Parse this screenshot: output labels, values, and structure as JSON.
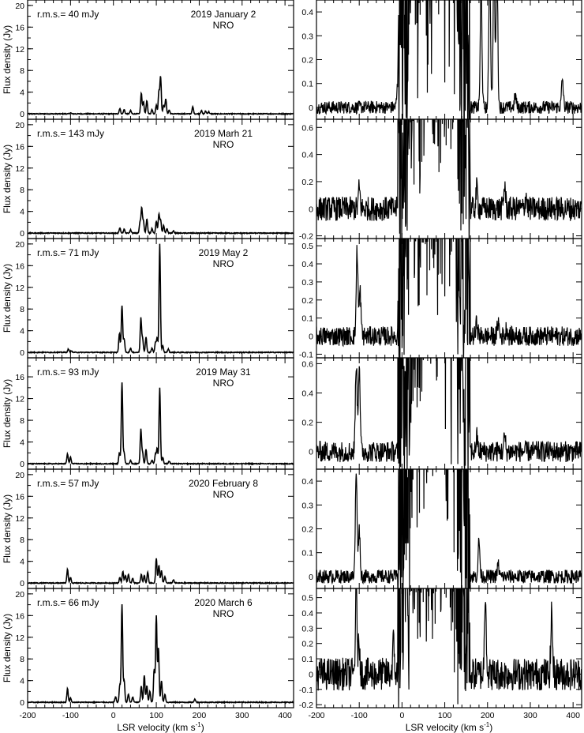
{
  "chart_data": {
    "type": "line",
    "xlabel": "LSR velocity (km s",
    "xlabel_sup": "-1",
    "xlabel_close": ")",
    "ylabel": "Flux density (Jy)",
    "xlim": [
      -200,
      420
    ],
    "x_ticks": [
      -200,
      -100,
      0,
      100,
      200,
      300,
      400
    ],
    "x_tick_labels": [
      "-200",
      "-100",
      "0",
      "100",
      "200",
      "300",
      "400"
    ],
    "rows": [
      {
        "rms_label": "r.m.s.= 40 mJy",
        "date": "2019 January 2",
        "station": "NRO",
        "left": {
          "ylim": [
            -1,
            21
          ],
          "yticks": [
            0,
            4,
            8,
            12,
            16,
            20
          ],
          "peaks": [
            [
              -100,
              0.2
            ],
            [
              15,
              1.0
            ],
            [
              25,
              0.8
            ],
            [
              40,
              0.6
            ],
            [
              65,
              3.8
            ],
            [
              70,
              2.2
            ],
            [
              78,
              2.4
            ],
            [
              90,
              0.8
            ],
            [
              100,
              1.6
            ],
            [
              106,
              4.0
            ],
            [
              110,
              6.8
            ],
            [
              117,
              1.6
            ],
            [
              122,
              2.8
            ],
            [
              130,
              0.7
            ],
            [
              185,
              1.3
            ],
            [
              205,
              0.6
            ],
            [
              215,
              0.5
            ],
            [
              222,
              0.4
            ]
          ]
        },
        "right": {
          "ylim": [
            -0.05,
            0.45
          ],
          "yticks": [
            0,
            0.1,
            0.2,
            0.3,
            0.4
          ],
          "ytick_labels": [
            "0",
            "0.1",
            "0.2",
            "0.3",
            "0.4"
          ],
          "noise": 0.015,
          "peaks": [
            [
              -10,
              0.1
            ],
            [
              185,
              0.5
            ],
            [
              205,
              0.6
            ],
            [
              215,
              0.6
            ],
            [
              222,
              0.6
            ],
            [
              265,
              0.05
            ],
            [
              375,
              0.12
            ]
          ]
        }
      },
      {
        "rms_label": "r.m.s.= 143 mJy",
        "date": "2019 Marh 21",
        "station": "NRO",
        "left": {
          "ylim": [
            -1,
            21
          ],
          "yticks": [
            0,
            4,
            8,
            12,
            16,
            20
          ],
          "peaks": [
            [
              15,
              1.0
            ],
            [
              25,
              0.7
            ],
            [
              40,
              0.6
            ],
            [
              62,
              2.0
            ],
            [
              66,
              4.6
            ],
            [
              70,
              2.2
            ],
            [
              78,
              2.6
            ],
            [
              90,
              0.9
            ],
            [
              100,
              2.2
            ],
            [
              106,
              3.5
            ],
            [
              110,
              2.4
            ],
            [
              117,
              1.4
            ],
            [
              125,
              0.8
            ],
            [
              140,
              0.4
            ]
          ]
        },
        "right": {
          "ylim": [
            -0.22,
            0.66
          ],
          "yticks": [
            -0.2,
            0,
            0.2,
            0.4,
            0.6
          ],
          "ytick_labels": [
            "-0.2",
            "0",
            "0.2",
            "0.4",
            "0.6"
          ],
          "noise": 0.05,
          "peaks": [
            [
              -100,
              0.15
            ],
            [
              175,
              0.15
            ],
            [
              240,
              0.18
            ],
            [
              290,
              0.1
            ]
          ]
        }
      },
      {
        "rms_label": "r.m.s.= 71 mJy",
        "date": "2019 May 2",
        "station": "NRO",
        "left": {
          "ylim": [
            -1,
            21
          ],
          "yticks": [
            0,
            4,
            8,
            12,
            16,
            20
          ],
          "peaks": [
            [
              -105,
              0.6
            ],
            [
              -98,
              0.3
            ],
            [
              14,
              3.5
            ],
            [
              20,
              8.6
            ],
            [
              25,
              2.5
            ],
            [
              40,
              0.8
            ],
            [
              64,
              6.3
            ],
            [
              68,
              2.5
            ],
            [
              76,
              2.8
            ],
            [
              90,
              0.8
            ],
            [
              98,
              1.8
            ],
            [
              102,
              2.6
            ],
            [
              108,
              20.0
            ],
            [
              115,
              1.2
            ],
            [
              128,
              0.6
            ]
          ]
        },
        "right": {
          "ylim": [
            -0.12,
            0.54
          ],
          "yticks": [
            -0.1,
            0,
            0.1,
            0.2,
            0.3,
            0.4,
            0.5
          ],
          "ytick_labels": [
            "-0.1",
            "0",
            "0.1",
            "0.2",
            "0.3",
            "0.4",
            "0.5"
          ],
          "noise": 0.03,
          "peaks": [
            [
              -105,
              0.48
            ],
            [
              -98,
              0.25
            ],
            [
              140,
              0.05
            ],
            [
              175,
              0.08
            ],
            [
              225,
              0.08
            ],
            [
              245,
              0.05
            ]
          ]
        }
      },
      {
        "rms_label": "r.m.s.= 93 mJy",
        "date": "2019 May 31",
        "station": "NRO",
        "left": {
          "ylim": [
            -1,
            19.5
          ],
          "yticks": [
            0,
            4,
            8,
            12,
            16
          ],
          "peaks": [
            [
              -107,
              1.8
            ],
            [
              -100,
              1.2
            ],
            [
              14,
              2.0
            ],
            [
              20,
              15.0
            ],
            [
              25,
              2.0
            ],
            [
              40,
              0.6
            ],
            [
              64,
              6.3
            ],
            [
              68,
              2.0
            ],
            [
              76,
              2.6
            ],
            [
              90,
              0.7
            ],
            [
              98,
              1.8
            ],
            [
              102,
              2.8
            ],
            [
              108,
              14.0
            ],
            [
              115,
              1.2
            ],
            [
              130,
              0.5
            ]
          ]
        },
        "right": {
          "ylim": [
            -0.12,
            0.64
          ],
          "yticks": [
            0,
            0.2,
            0.4,
            0.6
          ],
          "ytick_labels": [
            "0",
            "0.2",
            "0.4",
            "0.6"
          ],
          "noise": 0.04,
          "peaks": [
            [
              -107,
              0.62
            ],
            [
              -100,
              0.62
            ],
            [
              175,
              0.1
            ],
            [
              240,
              0.1
            ]
          ]
        }
      },
      {
        "rms_label": "r.m.s.= 57 mJy",
        "date": "2020 February 8",
        "station": "NRO",
        "left": {
          "ylim": [
            -1,
            21
          ],
          "yticks": [
            0,
            4,
            8,
            12,
            16,
            20
          ],
          "peaks": [
            [
              -107,
              2.5
            ],
            [
              -100,
              1.0
            ],
            [
              15,
              1.0
            ],
            [
              22,
              2.2
            ],
            [
              28,
              1.4
            ],
            [
              35,
              1.6
            ],
            [
              45,
              0.9
            ],
            [
              65,
              1.6
            ],
            [
              72,
              1.4
            ],
            [
              80,
              2.0
            ],
            [
              100,
              4.5
            ],
            [
              106,
              3.3
            ],
            [
              112,
              2.3
            ],
            [
              120,
              1.2
            ],
            [
              140,
              0.6
            ]
          ]
        },
        "right": {
          "ylim": [
            -0.05,
            0.45
          ],
          "yticks": [
            0,
            0.1,
            0.2,
            0.3,
            0.4
          ],
          "ytick_labels": [
            "0",
            "0.1",
            "0.2",
            "0.3",
            "0.4"
          ],
          "noise": 0.016,
          "peaks": [
            [
              -107,
              0.45
            ],
            [
              -100,
              0.2
            ],
            [
              180,
              0.15
            ],
            [
              225,
              0.05
            ]
          ]
        }
      },
      {
        "rms_label": "r.m.s.= 66 mJy",
        "date": "2020 March 6",
        "station": "NRO",
        "left": {
          "ylim": [
            -1,
            21
          ],
          "yticks": [
            0,
            4,
            8,
            12,
            16,
            20
          ],
          "peaks": [
            [
              -107,
              2.5
            ],
            [
              -100,
              0.8
            ],
            [
              5,
              1.0
            ],
            [
              15,
              3.2
            ],
            [
              20,
              18.0
            ],
            [
              25,
              4.0
            ],
            [
              35,
              1.5
            ],
            [
              45,
              1.0
            ],
            [
              65,
              3.0
            ],
            [
              72,
              5.0
            ],
            [
              78,
              3.0
            ],
            [
              85,
              2.0
            ],
            [
              95,
              6.0
            ],
            [
              100,
              16.0
            ],
            [
              105,
              10.0
            ],
            [
              112,
              4.0
            ],
            [
              120,
              1.5
            ],
            [
              190,
              0.6
            ]
          ]
        },
        "right": {
          "ylim": [
            -0.22,
            0.56
          ],
          "yticks": [
            -0.2,
            -0.1,
            0,
            0.1,
            0.2,
            0.3,
            0.4,
            0.5
          ],
          "ytick_labels": [
            "-0.2",
            "-0.1",
            "0",
            "0.1",
            "0.2",
            "0.3",
            "0.4",
            "0.5"
          ],
          "noise": 0.06,
          "peaks": [
            [
              -107,
              0.55
            ],
            [
              -100,
              0.2
            ],
            [
              -20,
              0.2
            ],
            [
              195,
              0.55
            ],
            [
              350,
              0.4
            ]
          ]
        }
      }
    ]
  }
}
